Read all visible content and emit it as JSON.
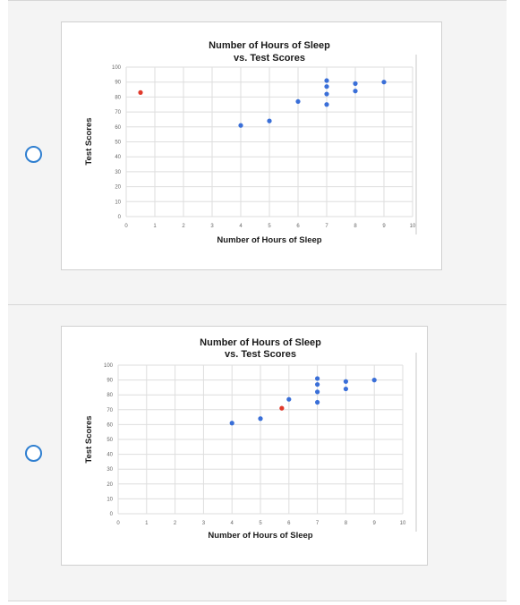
{
  "options": [
    {
      "chart_data": {
        "type": "scatter",
        "title_line1": "Number of Hours of Sleep",
        "title_line2": "vs. Test Scores",
        "xlabel": "Number of Hours of Sleep",
        "ylabel": "Test Scores",
        "xlim": [
          0,
          10
        ],
        "ylim": [
          0,
          100
        ],
        "xticks": [
          "0",
          "1",
          "2",
          "3",
          "4",
          "5",
          "6",
          "7",
          "8",
          "9",
          "10"
        ],
        "yticks": [
          "0",
          "10",
          "20",
          "30",
          "40",
          "50",
          "60",
          "70",
          "80",
          "90",
          "100"
        ],
        "grid": true,
        "series": [
          {
            "color": "#3a6fd8",
            "points": [
              [
                4,
                61
              ],
              [
                5,
                64
              ],
              [
                6,
                77
              ],
              [
                7,
                91
              ],
              [
                7,
                87
              ],
              [
                7,
                82
              ],
              [
                7,
                75
              ],
              [
                8,
                89
              ],
              [
                8,
                84
              ],
              [
                9,
                90
              ]
            ]
          },
          {
            "color": "#e03a2c",
            "points": [
              [
                0.5,
                83
              ]
            ]
          }
        ]
      }
    },
    {
      "chart_data": {
        "type": "scatter",
        "title_line1": "Number of Hours of Sleep",
        "title_line2": "vs. Test Scores",
        "xlabel": "Number of Hours of Sleep",
        "ylabel": "Test Scores",
        "xlim": [
          0,
          10
        ],
        "ylim": [
          0,
          100
        ],
        "xticks": [
          "0",
          "1",
          "2",
          "3",
          "4",
          "5",
          "6",
          "7",
          "8",
          "9",
          "10"
        ],
        "yticks": [
          "0",
          "10",
          "20",
          "30",
          "40",
          "50",
          "60",
          "70",
          "80",
          "90",
          "100"
        ],
        "grid": true,
        "series": [
          {
            "color": "#3a6fd8",
            "points": [
              [
                4,
                61
              ],
              [
                5,
                64
              ],
              [
                6,
                77
              ],
              [
                7,
                91
              ],
              [
                7,
                87
              ],
              [
                7,
                82
              ],
              [
                7,
                75
              ],
              [
                8,
                89
              ],
              [
                8,
                84
              ],
              [
                9,
                90
              ]
            ]
          },
          {
            "color": "#e03a2c",
            "points": [
              [
                5.75,
                71
              ]
            ]
          }
        ]
      }
    }
  ]
}
